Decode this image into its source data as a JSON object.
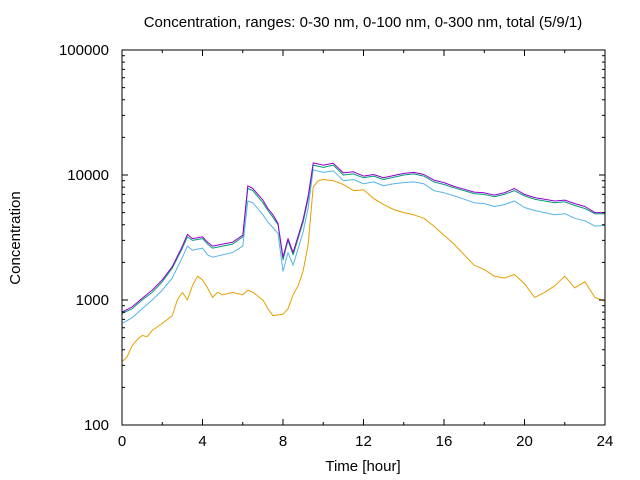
{
  "chart_data": {
    "type": "line",
    "title": "Concentration, ranges: 0-30 nm, 0-100 nm, 0-300 nm, total (5/9/1)",
    "xlabel": "Time [hour]",
    "ylabel": "Concentration",
    "xlim": [
      0,
      24
    ],
    "ylim": [
      100,
      100000
    ],
    "yscale": "log",
    "grid": false,
    "legend": "none",
    "x_ticks": [
      {
        "value": 0,
        "label": "0"
      },
      {
        "value": 4,
        "label": "4"
      },
      {
        "value": 8,
        "label": "8"
      },
      {
        "value": 12,
        "label": "12"
      },
      {
        "value": 16,
        "label": "16"
      },
      {
        "value": 20,
        "label": "20"
      },
      {
        "value": 24,
        "label": "24"
      }
    ],
    "y_ticks": [
      {
        "value": 100,
        "label": "100"
      },
      {
        "value": 1000,
        "label": "1000"
      },
      {
        "value": 10000,
        "label": "10000"
      },
      {
        "value": 100000,
        "label": "100000"
      }
    ],
    "series": [
      {
        "color": "#e69f00",
        "points": [
          [
            0,
            320
          ],
          [
            0.25,
            350
          ],
          [
            0.5,
            430
          ],
          [
            0.75,
            480
          ],
          [
            1,
            520
          ],
          [
            1.25,
            510
          ],
          [
            1.5,
            570
          ],
          [
            2,
            650
          ],
          [
            2.5,
            750
          ],
          [
            2.75,
            1000
          ],
          [
            3,
            1150
          ],
          [
            3.25,
            1000
          ],
          [
            3.5,
            1300
          ],
          [
            3.75,
            1550
          ],
          [
            4,
            1450
          ],
          [
            4.25,
            1250
          ],
          [
            4.5,
            1050
          ],
          [
            4.75,
            1150
          ],
          [
            5,
            1100
          ],
          [
            5.5,
            1150
          ],
          [
            6,
            1100
          ],
          [
            6.25,
            1200
          ],
          [
            6.5,
            1150
          ],
          [
            7,
            1000
          ],
          [
            7.25,
            850
          ],
          [
            7.5,
            750
          ],
          [
            8,
            770
          ],
          [
            8.25,
            850
          ],
          [
            8.5,
            1100
          ],
          [
            8.75,
            1300
          ],
          [
            9,
            1700
          ],
          [
            9.25,
            2800
          ],
          [
            9.5,
            8000
          ],
          [
            9.75,
            9000
          ],
          [
            10,
            9200
          ],
          [
            10.5,
            9000
          ],
          [
            11,
            8400
          ],
          [
            11.5,
            7500
          ],
          [
            12,
            7600
          ],
          [
            12.5,
            6500
          ],
          [
            13,
            5800
          ],
          [
            13.5,
            5300
          ],
          [
            14,
            5000
          ],
          [
            14.5,
            4800
          ],
          [
            15,
            4500
          ],
          [
            15.5,
            3900
          ],
          [
            16,
            3300
          ],
          [
            16.5,
            2800
          ],
          [
            17,
            2300
          ],
          [
            17.5,
            1900
          ],
          [
            18,
            1750
          ],
          [
            18.5,
            1550
          ],
          [
            19,
            1500
          ],
          [
            19.5,
            1600
          ],
          [
            20,
            1350
          ],
          [
            20.5,
            1050
          ],
          [
            21,
            1150
          ],
          [
            21.5,
            1300
          ],
          [
            22,
            1550
          ],
          [
            22.5,
            1250
          ],
          [
            23,
            1400
          ],
          [
            23.5,
            1050
          ],
          [
            24,
            980
          ]
        ]
      },
      {
        "color": "#56b4e9",
        "points": [
          [
            0,
            650
          ],
          [
            0.5,
            720
          ],
          [
            1,
            850
          ],
          [
            1.5,
            1000
          ],
          [
            2,
            1200
          ],
          [
            2.5,
            1500
          ],
          [
            3,
            2200
          ],
          [
            3.25,
            2700
          ],
          [
            3.5,
            2500
          ],
          [
            4,
            2600
          ],
          [
            4.25,
            2300
          ],
          [
            4.5,
            2200
          ],
          [
            5,
            2300
          ],
          [
            5.5,
            2400
          ],
          [
            6,
            2700
          ],
          [
            6.25,
            6200
          ],
          [
            6.5,
            6000
          ],
          [
            7,
            4800
          ],
          [
            7.25,
            4200
          ],
          [
            7.5,
            3800
          ],
          [
            7.75,
            3400
          ],
          [
            8,
            1700
          ],
          [
            8.25,
            2400
          ],
          [
            8.5,
            1900
          ],
          [
            9,
            3500
          ],
          [
            9.25,
            5500
          ],
          [
            9.5,
            11000
          ],
          [
            10,
            10500
          ],
          [
            10.5,
            10800
          ],
          [
            11,
            9000
          ],
          [
            11.5,
            9200
          ],
          [
            12,
            8500
          ],
          [
            12.5,
            8800
          ],
          [
            13,
            8200
          ],
          [
            13.5,
            8500
          ],
          [
            14,
            8700
          ],
          [
            14.5,
            8800
          ],
          [
            15,
            8500
          ],
          [
            15.5,
            7500
          ],
          [
            16,
            7200
          ],
          [
            16.5,
            6800
          ],
          [
            17,
            6400
          ],
          [
            17.5,
            6000
          ],
          [
            18,
            5900
          ],
          [
            18.5,
            5600
          ],
          [
            19,
            5800
          ],
          [
            19.5,
            6200
          ],
          [
            20,
            5500
          ],
          [
            20.5,
            5200
          ],
          [
            21,
            5000
          ],
          [
            21.5,
            4800
          ],
          [
            22,
            4900
          ],
          [
            22.5,
            4500
          ],
          [
            23,
            4300
          ],
          [
            23.5,
            3900
          ],
          [
            24,
            3950
          ]
        ]
      },
      {
        "color": "#009e73",
        "points": [
          [
            0,
            780
          ],
          [
            0.5,
            850
          ],
          [
            1,
            1000
          ],
          [
            1.5,
            1150
          ],
          [
            2,
            1400
          ],
          [
            2.5,
            1800
          ],
          [
            3,
            2600
          ],
          [
            3.25,
            3200
          ],
          [
            3.5,
            3000
          ],
          [
            4,
            3100
          ],
          [
            4.25,
            2800
          ],
          [
            4.5,
            2600
          ],
          [
            5,
            2700
          ],
          [
            5.5,
            2800
          ],
          [
            6,
            3200
          ],
          [
            6.25,
            7800
          ],
          [
            6.5,
            7500
          ],
          [
            7,
            6000
          ],
          [
            7.25,
            5200
          ],
          [
            7.5,
            4600
          ],
          [
            7.75,
            4000
          ],
          [
            8,
            2100
          ],
          [
            8.25,
            3000
          ],
          [
            8.5,
            2300
          ],
          [
            9,
            4200
          ],
          [
            9.25,
            6500
          ],
          [
            9.5,
            12000
          ],
          [
            10,
            11500
          ],
          [
            10.5,
            12000
          ],
          [
            11,
            10000
          ],
          [
            11.5,
            10200
          ],
          [
            12,
            9500
          ],
          [
            12.5,
            9800
          ],
          [
            13,
            9200
          ],
          [
            13.5,
            9600
          ],
          [
            14,
            10000
          ],
          [
            14.5,
            10200
          ],
          [
            15,
            9800
          ],
          [
            15.5,
            8800
          ],
          [
            16,
            8400
          ],
          [
            16.5,
            7900
          ],
          [
            17,
            7500
          ],
          [
            17.5,
            7100
          ],
          [
            18,
            7000
          ],
          [
            18.5,
            6700
          ],
          [
            19,
            7000
          ],
          [
            19.5,
            7500
          ],
          [
            20,
            6800
          ],
          [
            20.5,
            6400
          ],
          [
            21,
            6200
          ],
          [
            21.5,
            6000
          ],
          [
            22,
            6100
          ],
          [
            22.5,
            5700
          ],
          [
            23,
            5400
          ],
          [
            23.5,
            4900
          ],
          [
            24,
            4900
          ]
        ]
      },
      {
        "color": "#9400d3",
        "points": [
          [
            0,
            800
          ],
          [
            0.5,
            880
          ],
          [
            1,
            1030
          ],
          [
            1.5,
            1200
          ],
          [
            2,
            1450
          ],
          [
            2.5,
            1850
          ],
          [
            3,
            2700
          ],
          [
            3.25,
            3350
          ],
          [
            3.5,
            3100
          ],
          [
            4,
            3200
          ],
          [
            4.25,
            2900
          ],
          [
            4.5,
            2700
          ],
          [
            5,
            2800
          ],
          [
            5.5,
            2900
          ],
          [
            6,
            3300
          ],
          [
            6.25,
            8200
          ],
          [
            6.5,
            7800
          ],
          [
            7,
            6300
          ],
          [
            7.25,
            5400
          ],
          [
            7.5,
            4800
          ],
          [
            7.75,
            4100
          ],
          [
            8,
            2200
          ],
          [
            8.25,
            3100
          ],
          [
            8.5,
            2400
          ],
          [
            9,
            4400
          ],
          [
            9.25,
            6800
          ],
          [
            9.5,
            12500
          ],
          [
            10,
            12000
          ],
          [
            10.5,
            12400
          ],
          [
            11,
            10400
          ],
          [
            11.5,
            10600
          ],
          [
            12,
            9800
          ],
          [
            12.5,
            10100
          ],
          [
            13,
            9500
          ],
          [
            13.5,
            9900
          ],
          [
            14,
            10300
          ],
          [
            14.5,
            10500
          ],
          [
            15,
            10100
          ],
          [
            15.5,
            9100
          ],
          [
            16,
            8700
          ],
          [
            16.5,
            8100
          ],
          [
            17,
            7700
          ],
          [
            17.5,
            7300
          ],
          [
            18,
            7200
          ],
          [
            18.5,
            6900
          ],
          [
            19,
            7200
          ],
          [
            19.5,
            7800
          ],
          [
            20,
            7000
          ],
          [
            20.5,
            6600
          ],
          [
            21,
            6400
          ],
          [
            21.5,
            6200
          ],
          [
            22,
            6300
          ],
          [
            22.5,
            5900
          ],
          [
            23,
            5600
          ],
          [
            23.5,
            5000
          ],
          [
            24,
            5000
          ]
        ]
      }
    ]
  }
}
